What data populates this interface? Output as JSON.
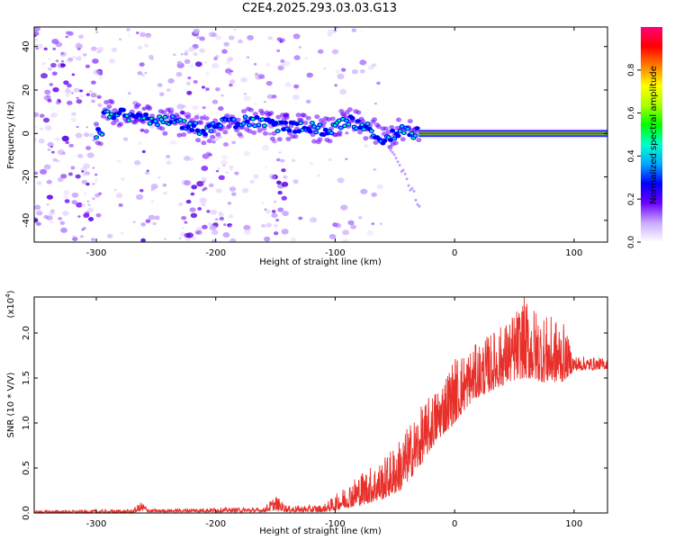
{
  "title": "C2E4.2025.293.03.03.G13",
  "chart_data": [
    {
      "type": "heatmap",
      "xlabel": "Height of straight line (km)",
      "ylabel": "Frequency (Hz)",
      "xlim": [
        -352,
        128
      ],
      "ylim": [
        -50,
        49
      ],
      "xticks": [
        -300,
        -200,
        -100,
        0,
        100
      ],
      "yticks": [
        -40,
        -20,
        0,
        20,
        40
      ],
      "colorbar": {
        "label": "Normalized spectral amplitude",
        "range": [
          0,
          1
        ],
        "ticks": [
          "0.0",
          "0.2",
          "0.4",
          "0.6",
          "0.8"
        ],
        "tick_values": [
          0,
          0.2,
          0.4,
          0.6,
          0.8
        ],
        "colors": [
          "#ffffff",
          "#c9a8ff",
          "#6a00ff",
          "#0000ff",
          "#00aaff",
          "#00ffcc",
          "#00ff00",
          "#aaff00",
          "#ffff00",
          "#ff8000",
          "#ff0000",
          "#ff0077"
        ]
      },
      "signal_trace": [
        {
          "x": -295,
          "f": 10
        },
        {
          "x": -270,
          "f": 8
        },
        {
          "x": -250,
          "f": 6
        },
        {
          "x": -230,
          "f": 5
        },
        {
          "x": -210,
          "f": 1
        },
        {
          "x": -190,
          "f": 5
        },
        {
          "x": -165,
          "f": 6
        },
        {
          "x": -150,
          "f": 3
        },
        {
          "x": -125,
          "f": 3
        },
        {
          "x": -105,
          "f": 1
        },
        {
          "x": -90,
          "f": 6
        },
        {
          "x": -75,
          "f": 3
        },
        {
          "x": -60,
          "f": -2
        },
        {
          "x": -45,
          "f": 1
        },
        {
          "x": -30,
          "f": 0
        },
        {
          "x": 0,
          "f": 0
        },
        {
          "x": 50,
          "f": 0
        },
        {
          "x": 100,
          "f": 0
        },
        {
          "x": 128,
          "f": 0
        }
      ]
    },
    {
      "type": "line",
      "xlabel": "Height of straight line (km)",
      "ylabel": "SNR (10 * V/V)",
      "yscale_label": "(x10",
      "yscale_exp": "4",
      "xlim": [
        -352,
        128
      ],
      "ylim": [
        0,
        24000
      ],
      "xticks": [
        -300,
        -200,
        -100,
        0,
        100
      ],
      "yticks": [
        0,
        5000,
        10000,
        15000,
        20000
      ],
      "ytick_labels": [
        "0.0",
        "0.5",
        "1.0",
        "1.5",
        "2.0"
      ],
      "color": "#e8302a",
      "envelope": [
        {
          "x": -352,
          "lo": 0,
          "hi": 300
        },
        {
          "x": -270,
          "lo": 0,
          "hi": 400
        },
        {
          "x": -262,
          "lo": 200,
          "hi": 1300
        },
        {
          "x": -255,
          "lo": 100,
          "hi": 400
        },
        {
          "x": -200,
          "lo": 100,
          "hi": 600
        },
        {
          "x": -160,
          "lo": 100,
          "hi": 600
        },
        {
          "x": -150,
          "lo": 300,
          "hi": 2000
        },
        {
          "x": -140,
          "lo": 100,
          "hi": 800
        },
        {
          "x": -110,
          "lo": 100,
          "hi": 900
        },
        {
          "x": -100,
          "lo": 300,
          "hi": 2000
        },
        {
          "x": -80,
          "lo": 800,
          "hi": 4500
        },
        {
          "x": -60,
          "lo": 1500,
          "hi": 6000
        },
        {
          "x": -45,
          "lo": 2500,
          "hi": 8500
        },
        {
          "x": -30,
          "lo": 5000,
          "hi": 11500
        },
        {
          "x": -15,
          "lo": 8000,
          "hi": 14000
        },
        {
          "x": 0,
          "lo": 10000,
          "hi": 17500
        },
        {
          "x": 15,
          "lo": 12500,
          "hi": 18500
        },
        {
          "x": 30,
          "lo": 13500,
          "hi": 20000
        },
        {
          "x": 45,
          "lo": 14500,
          "hi": 21500
        },
        {
          "x": 58,
          "lo": 15000,
          "hi": 24000
        },
        {
          "x": 75,
          "lo": 14500,
          "hi": 22000
        },
        {
          "x": 90,
          "lo": 14500,
          "hi": 21500
        },
        {
          "x": 100,
          "lo": 15800,
          "hi": 17500
        },
        {
          "x": 128,
          "lo": 16000,
          "hi": 17200
        }
      ]
    }
  ]
}
